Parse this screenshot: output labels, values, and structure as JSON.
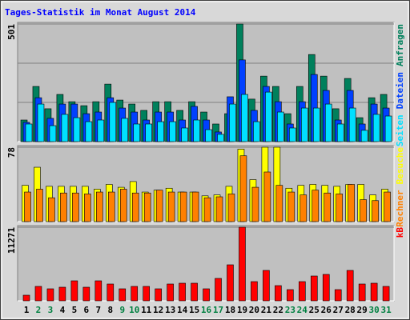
{
  "chart_data": [
    {
      "type": "bar",
      "title": "Tages-Statistik im Monat August 2014",
      "ylim": [
        0,
        501
      ],
      "yticks": [
        501
      ],
      "grid": true,
      "series": [
        {
          "name": "Anfragen",
          "color": "#00805c",
          "values": [
            92,
            235,
            140,
            201,
            170,
            153,
            170,
            245,
            177,
            160,
            133,
            170,
            170,
            133,
            170,
            126,
            75,
            119,
            501,
            181,
            279,
            235,
            119,
            235,
            371,
            279,
            140,
            269,
            102,
            187,
            201
          ]
        },
        {
          "name": "Dateien",
          "color": "#0040ff",
          "values": [
            82,
            187,
            99,
            160,
            160,
            119,
            126,
            187,
            143,
            126,
            92,
            126,
            126,
            92,
            150,
            92,
            41,
            191,
            348,
            133,
            235,
            170,
            75,
            170,
            286,
            218,
            92,
            218,
            75,
            160,
            143
          ]
        },
        {
          "name": "Seiten",
          "color": "#00e0ff",
          "values": [
            75,
            160,
            68,
            116,
            102,
            85,
            92,
            167,
            99,
            75,
            75,
            85,
            85,
            58,
            92,
            51,
            31,
            160,
            201,
            85,
            211,
            126,
            58,
            143,
            143,
            160,
            75,
            143,
            48,
            116,
            109
          ]
        }
      ]
    },
    {
      "type": "bar",
      "ylim": [
        0,
        78
      ],
      "yticks": [
        78
      ],
      "grid": true,
      "series": [
        {
          "name": "Besuche",
          "color": "#ffff00",
          "values": [
            38,
            57,
            37,
            37,
            37,
            37,
            34,
            39,
            36,
            42,
            31,
            33,
            35,
            31,
            31,
            27,
            28,
            37,
            76,
            44,
            78,
            78,
            35,
            38,
            39,
            38,
            37,
            39,
            39,
            28,
            34
          ]
        },
        {
          "name": "Rechner",
          "color": "#ff8000",
          "values": [
            31,
            34,
            25,
            30,
            30,
            29,
            31,
            31,
            34,
            30,
            30,
            33,
            31,
            31,
            31,
            25,
            26,
            29,
            69,
            36,
            52,
            38,
            31,
            28,
            33,
            30,
            29,
            39,
            23,
            22,
            31
          ]
        }
      ]
    },
    {
      "type": "bar",
      "ylim": [
        0,
        11271
      ],
      "yticks": [
        11271
      ],
      "grid": true,
      "categories": [
        "1",
        "2",
        "3",
        "4",
        "5",
        "6",
        "7",
        "8",
        "9",
        "10",
        "11",
        "12",
        "13",
        "14",
        "15",
        "16",
        "17",
        "18",
        "19",
        "20",
        "21",
        "22",
        "23",
        "24",
        "25",
        "26",
        "27",
        "28",
        "29",
        "30",
        "31"
      ],
      "category_colors": [
        "#000000",
        "#008040",
        "#008040",
        "#000000",
        "#000000",
        "#000000",
        "#000000",
        "#000000",
        "#008040",
        "#008040",
        "#000000",
        "#000000",
        "#000000",
        "#000000",
        "#000000",
        "#008040",
        "#008040",
        "#000000",
        "#000000",
        "#000000",
        "#000000",
        "#000000",
        "#008040",
        "#008040",
        "#000000",
        "#000000",
        "#000000",
        "#000000",
        "#000000",
        "#008040",
        "#008040"
      ],
      "series": [
        {
          "name": "kB",
          "color": "#ff0000",
          "values": [
            858,
            2205,
            1838,
            2083,
            3063,
            2083,
            3063,
            2573,
            1838,
            2205,
            2205,
            1838,
            2573,
            2695,
            2695,
            1838,
            3430,
            5513,
            11271,
            2940,
            4655,
            2328,
            1715,
            2940,
            3798,
            4043,
            1715,
            4655,
            2573,
            2695,
            2205
          ]
        }
      ]
    }
  ]
}
